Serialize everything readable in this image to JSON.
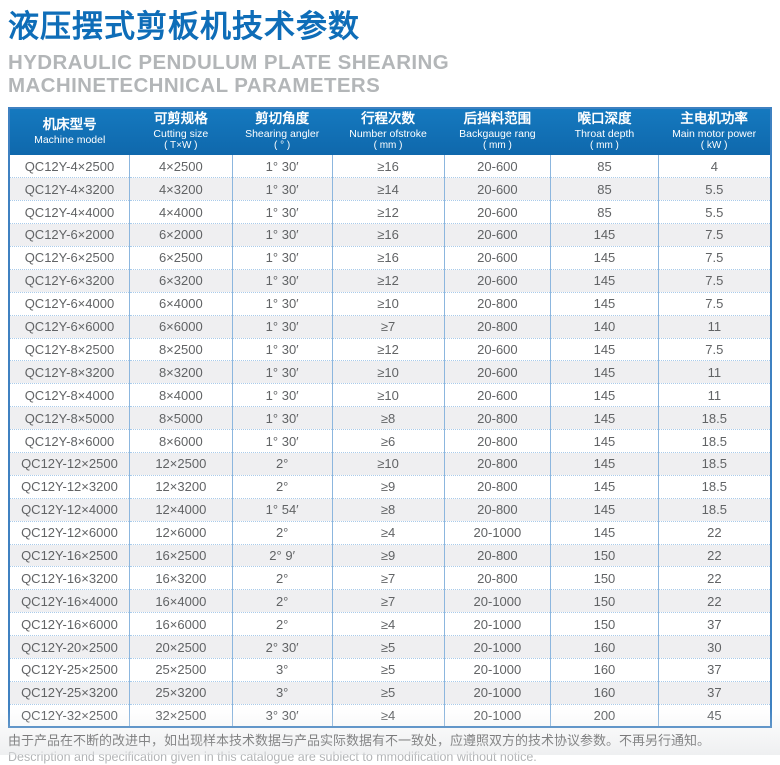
{
  "header": {
    "title_zh": "液压摆式剪板机技术参数",
    "title_en": "HYDRAULIC PENDULUM PLATE SHEARING MACHINETECHNICAL PARAMETERS"
  },
  "colors": {
    "title_blue": "#0e6db8",
    "table_header_bg": "#1173ba",
    "table_outer_border": "#3f81c1",
    "column_separator": "#8cb6de",
    "row_separator_dotted": "#a9cbea",
    "even_row_bg": "#efeff1",
    "body_text": "#616365",
    "subtitle_gray": "#b3b6b8"
  },
  "table": {
    "columns": [
      {
        "key": "machine-model",
        "zh": "机床型号",
        "en": "Machine model",
        "unit": ""
      },
      {
        "key": "cutting-size",
        "zh": "可剪规格",
        "en": "Cutting size",
        "unit": "( T×W )"
      },
      {
        "key": "shearing-angle",
        "zh": "剪切角度",
        "en": "Shearing angler",
        "unit": "( ° )"
      },
      {
        "key": "stroke-number",
        "zh": "行程次数",
        "en": "Number ofstroke",
        "unit": "( mm )"
      },
      {
        "key": "backgauge-range",
        "zh": "后挡料范围",
        "en": "Backgauge rang",
        "unit": "( mm )"
      },
      {
        "key": "throat-depth",
        "zh": "喉口深度",
        "en": "Throat depth",
        "unit": "( mm )"
      },
      {
        "key": "motor-power",
        "zh": "主电机功率",
        "en": "Main motor power",
        "unit": "( kW )"
      }
    ],
    "rows": [
      [
        "QC12Y-4×2500",
        "4×2500",
        "1° 30′",
        "≥16",
        "20-600",
        "85",
        "4"
      ],
      [
        "QC12Y-4×3200",
        "4×3200",
        "1° 30′",
        "≥14",
        "20-600",
        "85",
        "5.5"
      ],
      [
        "QC12Y-4×4000",
        "4×4000",
        "1° 30′",
        "≥12",
        "20-600",
        "85",
        "5.5"
      ],
      [
        "QC12Y-6×2000",
        "6×2000",
        "1° 30′",
        "≥16",
        "20-600",
        "145",
        "7.5"
      ],
      [
        "QC12Y-6×2500",
        "6×2500",
        "1° 30′",
        "≥16",
        "20-600",
        "145",
        "7.5"
      ],
      [
        "QC12Y-6×3200",
        "6×3200",
        "1° 30′",
        "≥12",
        "20-600",
        "145",
        "7.5"
      ],
      [
        "QC12Y-6×4000",
        "6×4000",
        "1° 30′",
        "≥10",
        "20-800",
        "145",
        "7.5"
      ],
      [
        "QC12Y-6×6000",
        "6×6000",
        "1° 30′",
        "≥7",
        "20-800",
        "140",
        "11"
      ],
      [
        "QC12Y-8×2500",
        "8×2500",
        "1° 30′",
        "≥12",
        "20-600",
        "145",
        "7.5"
      ],
      [
        "QC12Y-8×3200",
        "8×3200",
        "1° 30′",
        "≥10",
        "20-600",
        "145",
        "11"
      ],
      [
        "QC12Y-8×4000",
        "8×4000",
        "1° 30′",
        "≥10",
        "20-600",
        "145",
        "11"
      ],
      [
        "QC12Y-8×5000",
        "8×5000",
        "1° 30′",
        "≥8",
        "20-800",
        "145",
        "18.5"
      ],
      [
        "QC12Y-8×6000",
        "8×6000",
        "1° 30′",
        "≥6",
        "20-800",
        "145",
        "18.5"
      ],
      [
        "QC12Y-12×2500",
        "12×2500",
        "2°",
        "≥10",
        "20-800",
        "145",
        "18.5"
      ],
      [
        "QC12Y-12×3200",
        "12×3200",
        "2°",
        "≥9",
        "20-800",
        "145",
        "18.5"
      ],
      [
        "QC12Y-12×4000",
        "12×4000",
        "1° 54′",
        "≥8",
        "20-800",
        "145",
        "18.5"
      ],
      [
        "QC12Y-12×6000",
        "12×6000",
        "2°",
        "≥4",
        "20-1000",
        "145",
        "22"
      ],
      [
        "QC12Y-16×2500",
        "16×2500",
        "2° 9′",
        "≥9",
        "20-800",
        "150",
        "22"
      ],
      [
        "QC12Y-16×3200",
        "16×3200",
        "2°",
        "≥7",
        "20-800",
        "150",
        "22"
      ],
      [
        "QC12Y-16×4000",
        "16×4000",
        "2°",
        "≥7",
        "20-1000",
        "150",
        "22"
      ],
      [
        "QC12Y-16×6000",
        "16×6000",
        "2°",
        "≥4",
        "20-1000",
        "150",
        "37"
      ],
      [
        "QC12Y-20×2500",
        "20×2500",
        "2° 30′",
        "≥5",
        "20-1000",
        "160",
        "30"
      ],
      [
        "QC12Y-25×2500",
        "25×2500",
        "3°",
        "≥5",
        "20-1000",
        "160",
        "37"
      ],
      [
        "QC12Y-25×3200",
        "25×3200",
        "3°",
        "≥5",
        "20-1000",
        "160",
        "37"
      ],
      [
        "QC12Y-32×2500",
        "32×2500",
        "3° 30′",
        "≥4",
        "20-1000",
        "200",
        "45"
      ]
    ],
    "column_widths_pct": [
      15.8,
      13.5,
      13.1,
      14.7,
      14.0,
      14.1,
      14.8
    ]
  },
  "footer": {
    "note_zh": "由于产品在不断的改进中，如出现样本技术数据与产品实际数据有不一致处，应遵照双方的技术协议参数。不再另行通知。",
    "note_en": "Description and specification given in this catalogue are subiect to mmodification without notice."
  }
}
